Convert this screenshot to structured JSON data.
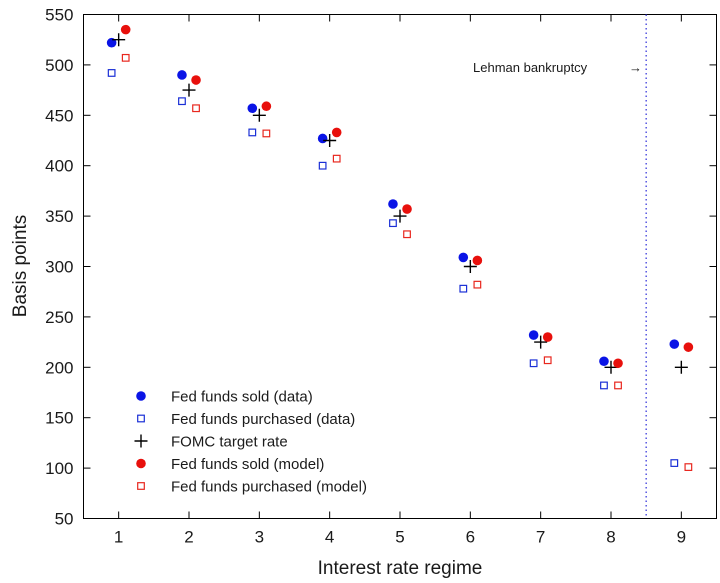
{
  "chart_data": {
    "type": "scatter",
    "xlabel": "Interest rate regime",
    "ylabel": "Basis points",
    "xlim": [
      0.5,
      9.5
    ],
    "ylim": [
      50,
      550
    ],
    "xticks": [
      1,
      2,
      3,
      4,
      5,
      6,
      7,
      8,
      9
    ],
    "yticks": [
      50,
      100,
      150,
      200,
      250,
      300,
      350,
      400,
      450,
      500,
      550
    ],
    "grid": false,
    "legend_position": "bottom-left",
    "series": [
      {
        "name": "Fed funds sold (data)",
        "marker": "filled-circle",
        "color": "#0a14e6",
        "x_offset": -0.1,
        "values": [
          522,
          490,
          457,
          427,
          362,
          309,
          232,
          206,
          223
        ]
      },
      {
        "name": "Fed funds purchased (data)",
        "marker": "open-square",
        "color": "#1a2fd6",
        "x_offset": -0.1,
        "values": [
          492,
          464,
          433,
          400,
          343,
          278,
          204,
          182,
          105
        ]
      },
      {
        "name": "FOMC target rate",
        "marker": "plus",
        "color": "#000000",
        "x_offset": 0,
        "values": [
          525,
          475,
          450,
          425,
          350,
          300,
          225,
          200,
          200
        ]
      },
      {
        "name": "Fed funds sold (model)",
        "marker": "filled-circle",
        "color": "#e8100c",
        "x_offset": 0.1,
        "values": [
          535,
          485,
          459,
          433,
          357,
          306,
          230,
          204,
          220
        ]
      },
      {
        "name": "Fed funds purchased (model)",
        "marker": "open-square",
        "color": "#e8271e",
        "x_offset": 0.1,
        "values": [
          507,
          457,
          432,
          407,
          332,
          282,
          207,
          182,
          101
        ]
      }
    ],
    "vline": {
      "x": 8.5,
      "color": "#3b3bdc",
      "style": "dotted"
    },
    "annotations": [
      {
        "text": "Lehman bankruptcy",
        "arrow": "→"
      }
    ]
  }
}
